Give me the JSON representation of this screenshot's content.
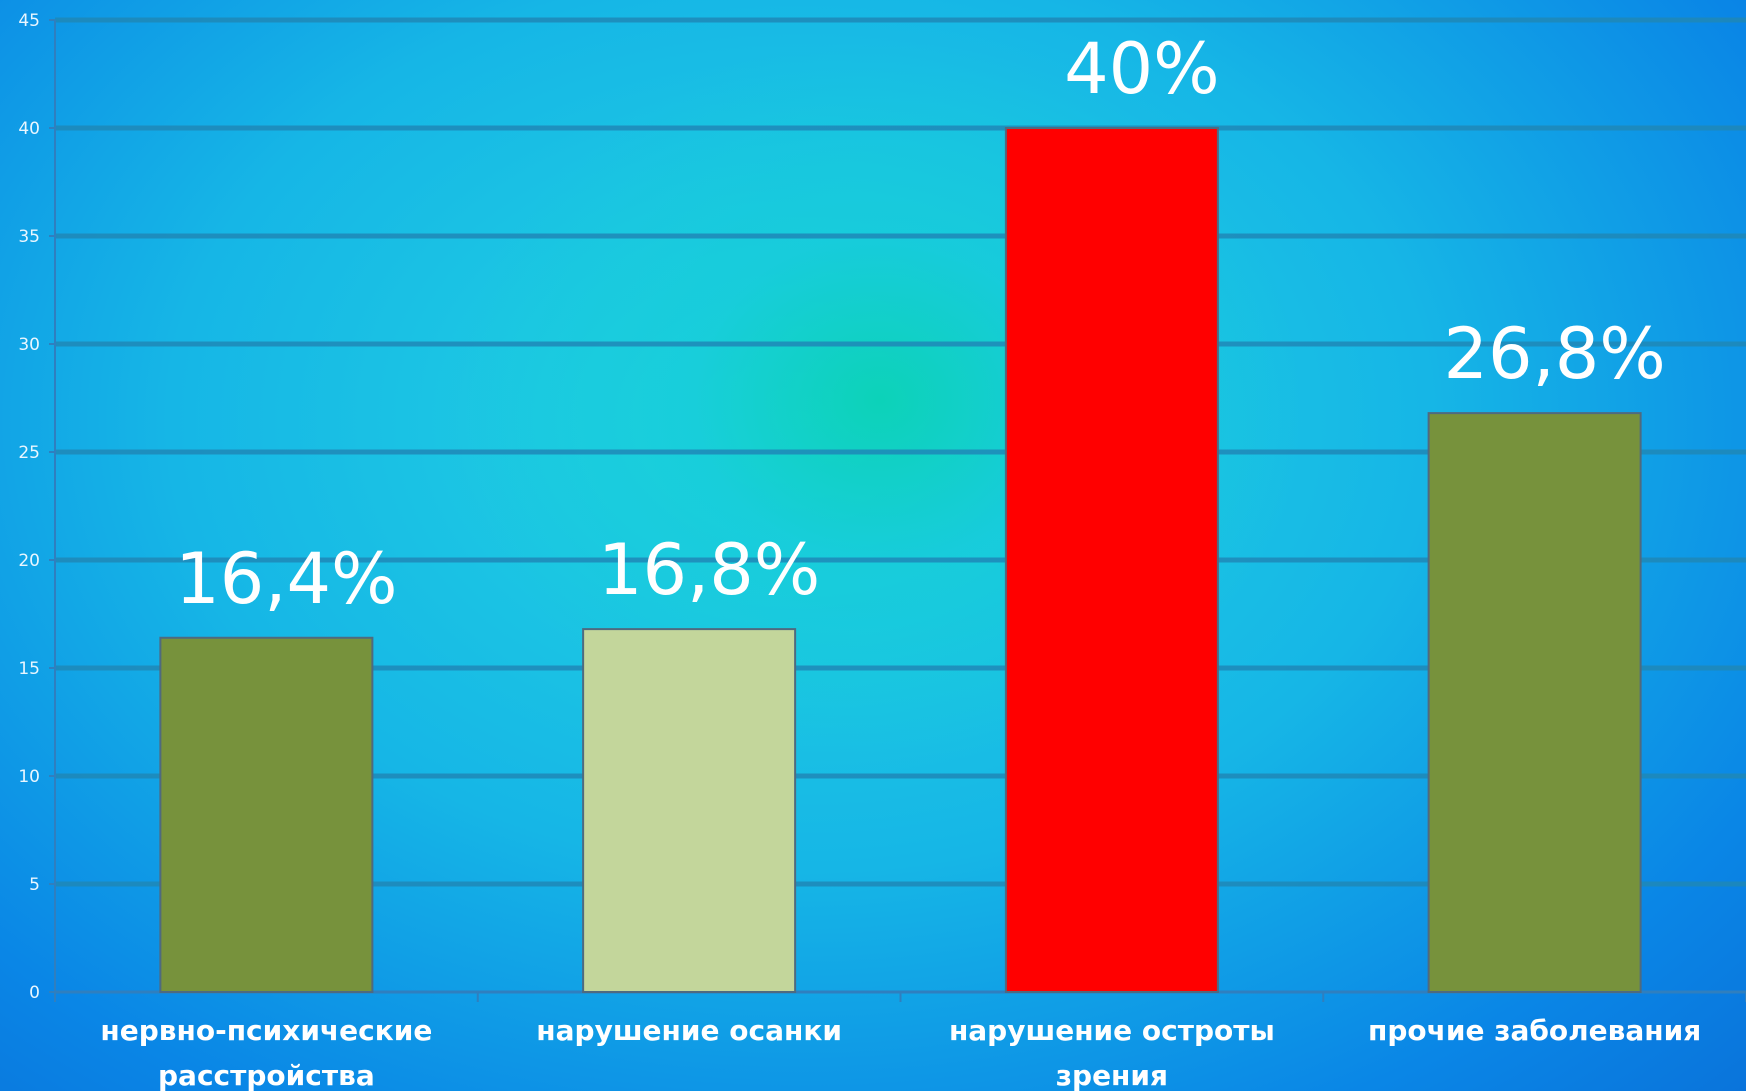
{
  "chart_data": {
    "type": "bar",
    "title": "",
    "xlabel": "",
    "ylabel": "",
    "ylim": [
      0,
      45
    ],
    "yticks": [
      0,
      5,
      10,
      15,
      20,
      25,
      30,
      35,
      40,
      45
    ],
    "grid": true,
    "legend": "none",
    "categories": [
      [
        "нервно-психические",
        "расстройства"
      ],
      [
        "нарушение осанки"
      ],
      [
        "нарушение остроты",
        "зрения"
      ],
      [
        "прочие заболевания"
      ]
    ],
    "values": [
      16.4,
      16.8,
      40,
      26.8
    ],
    "data_labels": [
      "16,4%",
      "16,8%",
      "40%",
      "26,8%"
    ],
    "bar_colors": [
      "#77923c",
      "#c3d69b",
      "#ff0000",
      "#77923c"
    ],
    "gridline_color": "#1f88b8"
  }
}
